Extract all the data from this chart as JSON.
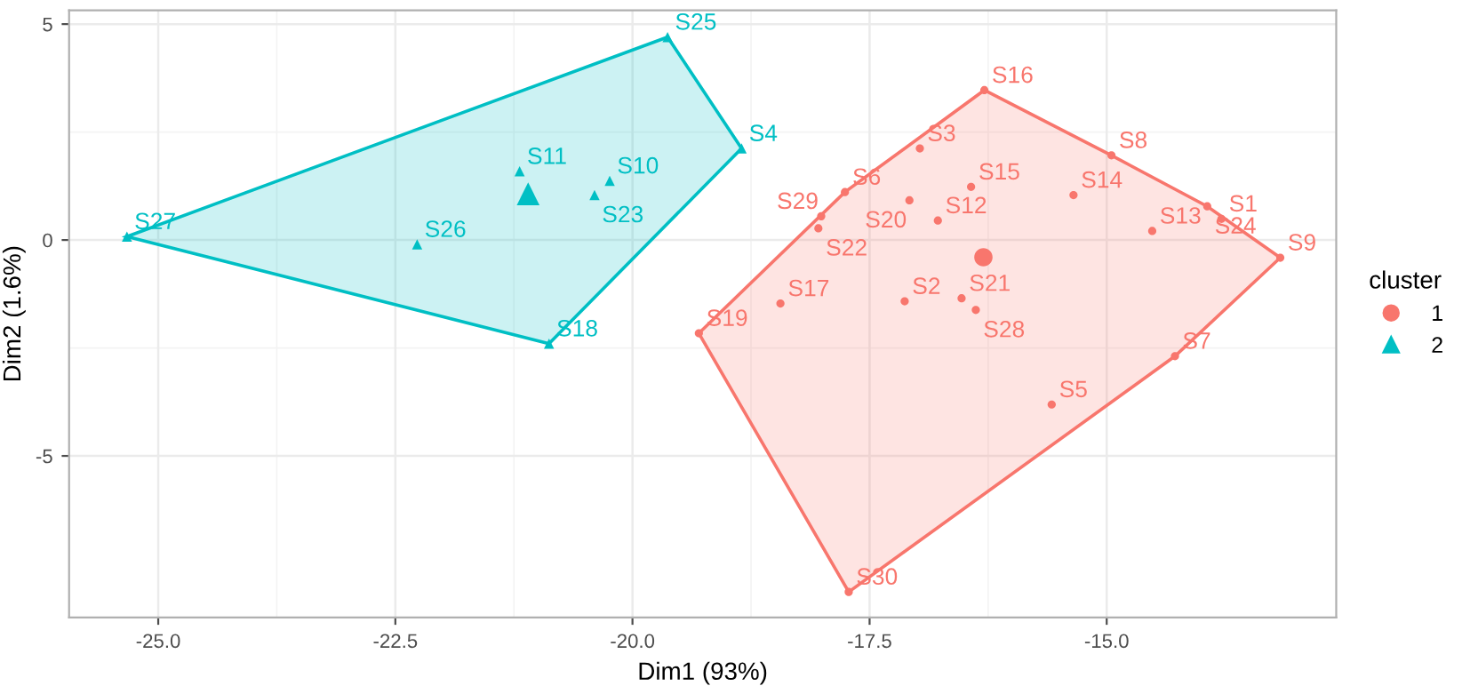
{
  "chart_data": {
    "type": "scatter",
    "xlabel": "Dim1 (93%)",
    "ylabel": "Dim2 (1.6%)",
    "legend_title": "cluster",
    "legend": "right",
    "grid": true,
    "xlim": [
      -25.94,
      -12.58
    ],
    "ylim": [
      -8.74,
      5.32
    ],
    "xticks": [
      {
        "value": -25,
        "label": "-25.0"
      },
      {
        "value": -22.5,
        "label": "-22.5"
      },
      {
        "value": -20,
        "label": "-20.0"
      },
      {
        "value": -17.5,
        "label": "-17.5"
      },
      {
        "value": -15,
        "label": "-15.0"
      }
    ],
    "yticks": [
      {
        "value": -5,
        "label": "-5"
      },
      0,
      5
    ],
    "series": [
      {
        "name": "1",
        "color": "#f8766d",
        "marker": "circle",
        "x": [
          -16.3,
          -13.79,
          -17.13,
          -16.97,
          -15.58,
          -17.76,
          -14.28,
          -14.95,
          -13.17,
          -16.78,
          -14.52,
          -15.35,
          -16.43,
          -16.29,
          -18.44,
          -19.3,
          -17.08,
          -16.53,
          -18.04,
          -13.94,
          -16.38,
          -18.01,
          -17.72
        ],
        "values": [
          -0.4,
          0.49,
          -1.42,
          2.12,
          -3.81,
          1.11,
          -2.69,
          1.96,
          -0.41,
          0.45,
          0.21,
          1.04,
          1.23,
          3.47,
          -1.47,
          -2.16,
          0.92,
          -1.35,
          0.27,
          0.78,
          -1.62,
          0.55,
          -8.15
        ],
        "sizes": [
          1,
          0.2,
          0.2,
          0.2,
          0.2,
          0.2,
          0.2,
          0.2,
          0.2,
          0.2,
          0.2,
          0.2,
          0.2,
          0.2,
          0.2,
          0.2,
          0.2,
          0.2,
          0.2,
          0.2,
          0.2,
          0.2,
          0.2
        ]
      },
      {
        "name": "2",
        "color": "#00bfc4",
        "marker": "triangle",
        "x": [
          -21.1,
          -18.85,
          -20.24,
          -21.19,
          -20.88,
          -20.4,
          -19.63,
          -22.27,
          -25.33
        ],
        "values": [
          1.07,
          2.12,
          1.37,
          1.59,
          -2.4,
          1.04,
          4.7,
          -0.1,
          0.08
        ],
        "sizes": [
          1,
          0.2,
          0.2,
          0.2,
          0.2,
          0.2,
          0.2,
          0.2,
          0.2
        ]
      }
    ],
    "annotations": [
      {
        "text": "S1",
        "x": -13.79,
        "y": 0.49
      },
      {
        "text": "S2",
        "x": -17.13,
        "y": -1.42
      },
      {
        "text": "S3",
        "x": -16.97,
        "y": 2.12
      },
      {
        "text": "S4",
        "x": -18.85,
        "y": 2.12
      },
      {
        "text": "S5",
        "x": -15.58,
        "y": -3.81
      },
      {
        "text": "S6",
        "x": -17.76,
        "y": 1.11
      },
      {
        "text": "S7",
        "x": -14.28,
        "y": -2.69
      },
      {
        "text": "S8",
        "x": -14.95,
        "y": 1.96
      },
      {
        "text": "S9",
        "x": -13.17,
        "y": -0.41
      },
      {
        "text": "S10",
        "x": -20.24,
        "y": 1.37
      },
      {
        "text": "S11",
        "x": -21.19,
        "y": 1.59
      },
      {
        "text": "S12",
        "x": -16.78,
        "y": 0.45
      },
      {
        "text": "S13",
        "x": -14.52,
        "y": 0.21
      },
      {
        "text": "S14",
        "x": -15.35,
        "y": 1.04
      },
      {
        "text": "S15",
        "x": -16.43,
        "y": 1.23
      },
      {
        "text": "S16",
        "x": -16.29,
        "y": 3.47
      },
      {
        "text": "S17",
        "x": -18.44,
        "y": -1.47
      },
      {
        "text": "S18",
        "x": -20.88,
        "y": -2.4
      },
      {
        "text": "S19",
        "x": -19.3,
        "y": -2.16
      },
      {
        "text": "S20",
        "x": -17.08,
        "y": 0.92
      },
      {
        "text": "S21",
        "x": -16.53,
        "y": -1.35
      },
      {
        "text": "S22",
        "x": -18.04,
        "y": 0.27
      },
      {
        "text": "S23",
        "x": -20.4,
        "y": 1.04
      },
      {
        "text": "S24",
        "x": -13.94,
        "y": 0.78
      },
      {
        "text": "S25",
        "x": -19.63,
        "y": 4.7
      },
      {
        "text": "S26",
        "x": -22.27,
        "y": -0.1
      },
      {
        "text": "S27",
        "x": -25.33,
        "y": 0.08
      },
      {
        "text": "S28",
        "x": -16.38,
        "y": -1.62
      },
      {
        "text": "S29",
        "x": -18.01,
        "y": 0.55
      },
      {
        "text": "S30",
        "x": -17.72,
        "y": -8.15
      }
    ]
  }
}
